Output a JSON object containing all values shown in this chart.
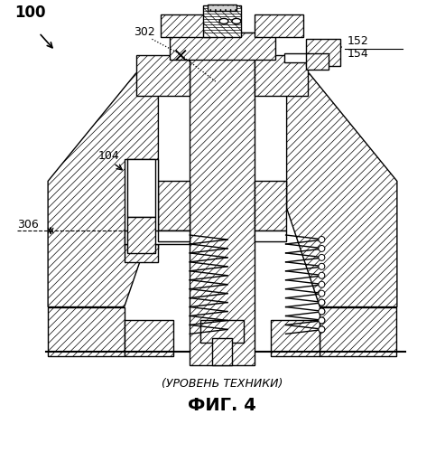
{
  "title_line1": "(УРОВЕНЬ ТЕХНИКИ)",
  "title_line2": "ФИГ. 4",
  "label_100": "100",
  "label_302": "302",
  "label_104": "104",
  "label_152": "152",
  "label_154": "154",
  "label_306": "306",
  "bg_color": "#ffffff",
  "fig_width": 4.93,
  "fig_height": 5.0,
  "dpi": 100
}
